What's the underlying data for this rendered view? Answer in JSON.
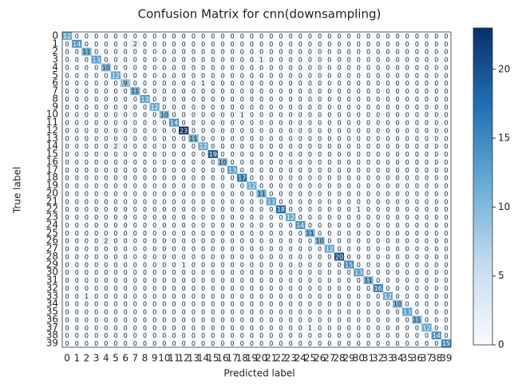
{
  "chart_data": {
    "type": "heatmap",
    "title": "Confusion Matrix for cnn(downsampling)",
    "xlabel": "Predicted label",
    "ylabel": "True label",
    "categories": [
      0,
      1,
      2,
      3,
      4,
      5,
      6,
      7,
      8,
      9,
      10,
      11,
      12,
      13,
      14,
      15,
      16,
      17,
      18,
      19,
      20,
      21,
      22,
      23,
      24,
      25,
      26,
      27,
      28,
      29,
      30,
      31,
      32,
      33,
      34,
      35,
      36,
      37,
      38,
      39
    ],
    "colormap": "Blues",
    "zlim": [
      0,
      23
    ],
    "zticks": [
      0,
      5,
      10,
      15,
      20
    ],
    "z": [
      [
        12,
        0,
        0,
        0,
        0,
        0,
        0,
        0,
        0,
        0,
        0,
        0,
        0,
        0,
        0,
        0,
        0,
        0,
        0,
        0,
        0,
        0,
        0,
        0,
        0,
        0,
        0,
        0,
        0,
        0,
        0,
        0,
        0,
        0,
        0,
        0,
        0,
        0,
        0,
        0
      ],
      [
        0,
        14,
        0,
        0,
        0,
        0,
        0,
        2,
        0,
        0,
        0,
        0,
        0,
        0,
        0,
        0,
        0,
        0,
        0,
        0,
        0,
        0,
        0,
        0,
        0,
        0,
        0,
        0,
        0,
        0,
        0,
        0,
        0,
        0,
        0,
        0,
        0,
        0,
        0,
        0
      ],
      [
        0,
        0,
        11,
        0,
        0,
        0,
        0,
        0,
        0,
        0,
        0,
        0,
        0,
        0,
        0,
        0,
        0,
        0,
        0,
        0,
        0,
        0,
        0,
        0,
        0,
        0,
        0,
        0,
        0,
        0,
        0,
        0,
        0,
        0,
        0,
        0,
        0,
        0,
        0,
        0
      ],
      [
        0,
        0,
        0,
        13,
        0,
        0,
        0,
        0,
        0,
        0,
        0,
        0,
        0,
        0,
        0,
        0,
        0,
        0,
        0,
        0,
        1,
        0,
        0,
        0,
        0,
        0,
        0,
        0,
        0,
        0,
        0,
        0,
        0,
        0,
        0,
        0,
        0,
        0,
        0,
        0
      ],
      [
        0,
        0,
        0,
        0,
        10,
        0,
        0,
        0,
        0,
        0,
        0,
        0,
        0,
        0,
        0,
        0,
        0,
        0,
        0,
        0,
        0,
        0,
        0,
        0,
        0,
        0,
        0,
        0,
        0,
        0,
        0,
        0,
        0,
        0,
        0,
        0,
        0,
        0,
        0,
        0
      ],
      [
        0,
        0,
        0,
        0,
        0,
        12,
        0,
        0,
        0,
        0,
        0,
        0,
        0,
        0,
        0,
        0,
        0,
        0,
        0,
        0,
        0,
        0,
        0,
        0,
        0,
        0,
        0,
        0,
        0,
        0,
        0,
        0,
        0,
        0,
        0,
        0,
        0,
        0,
        0,
        0
      ],
      [
        0,
        0,
        0,
        0,
        0,
        0,
        9,
        0,
        0,
        0,
        0,
        0,
        0,
        0,
        1,
        0,
        0,
        0,
        0,
        0,
        0,
        0,
        0,
        0,
        0,
        0,
        0,
        0,
        0,
        0,
        0,
        0,
        0,
        0,
        0,
        0,
        0,
        0,
        0,
        0
      ],
      [
        0,
        0,
        0,
        0,
        0,
        0,
        0,
        11,
        0,
        0,
        0,
        0,
        0,
        0,
        0,
        0,
        0,
        0,
        0,
        0,
        0,
        0,
        0,
        0,
        0,
        0,
        0,
        0,
        0,
        0,
        0,
        0,
        0,
        0,
        0,
        0,
        0,
        0,
        0,
        0
      ],
      [
        0,
        0,
        0,
        0,
        0,
        0,
        0,
        0,
        13,
        0,
        0,
        0,
        0,
        0,
        0,
        0,
        0,
        0,
        0,
        0,
        0,
        0,
        0,
        0,
        0,
        0,
        0,
        0,
        0,
        0,
        0,
        0,
        0,
        0,
        0,
        0,
        0,
        0,
        0,
        0
      ],
      [
        0,
        0,
        0,
        0,
        0,
        0,
        0,
        0,
        0,
        12,
        0,
        0,
        0,
        0,
        0,
        0,
        0,
        0,
        0,
        0,
        0,
        0,
        0,
        0,
        0,
        0,
        0,
        0,
        0,
        0,
        0,
        0,
        0,
        0,
        0,
        0,
        0,
        0,
        0,
        0
      ],
      [
        0,
        0,
        0,
        0,
        0,
        0,
        0,
        0,
        0,
        0,
        10,
        0,
        0,
        0,
        0,
        0,
        0,
        0,
        1,
        0,
        0,
        0,
        0,
        0,
        0,
        0,
        0,
        0,
        0,
        0,
        0,
        0,
        0,
        0,
        0,
        0,
        0,
        0,
        0,
        0
      ],
      [
        0,
        0,
        0,
        0,
        0,
        0,
        0,
        0,
        0,
        0,
        0,
        14,
        0,
        0,
        0,
        0,
        0,
        0,
        0,
        0,
        0,
        0,
        0,
        0,
        0,
        0,
        0,
        0,
        0,
        0,
        0,
        0,
        0,
        0,
        0,
        0,
        0,
        0,
        0,
        0
      ],
      [
        0,
        0,
        0,
        0,
        0,
        0,
        0,
        0,
        0,
        0,
        0,
        0,
        23,
        0,
        0,
        0,
        0,
        0,
        0,
        0,
        0,
        0,
        0,
        0,
        0,
        0,
        0,
        0,
        0,
        0,
        0,
        0,
        0,
        0,
        0,
        0,
        0,
        0,
        0,
        0
      ],
      [
        0,
        0,
        0,
        0,
        0,
        0,
        0,
        0,
        0,
        0,
        0,
        0,
        0,
        11,
        0,
        0,
        0,
        0,
        0,
        0,
        0,
        0,
        0,
        0,
        0,
        0,
        0,
        0,
        0,
        0,
        0,
        0,
        0,
        0,
        0,
        0,
        0,
        0,
        0,
        0
      ],
      [
        0,
        0,
        0,
        0,
        0,
        2,
        0,
        0,
        0,
        0,
        0,
        0,
        0,
        0,
        12,
        0,
        0,
        0,
        0,
        0,
        0,
        0,
        0,
        0,
        0,
        0,
        0,
        0,
        0,
        0,
        0,
        0,
        0,
        0,
        0,
        0,
        0,
        0,
        0,
        0
      ],
      [
        0,
        0,
        0,
        0,
        0,
        0,
        0,
        0,
        0,
        0,
        0,
        0,
        0,
        0,
        0,
        19,
        0,
        0,
        0,
        0,
        0,
        0,
        0,
        0,
        0,
        0,
        0,
        0,
        0,
        0,
        0,
        0,
        0,
        0,
        0,
        0,
        0,
        0,
        0,
        0
      ],
      [
        0,
        0,
        0,
        0,
        0,
        0,
        0,
        0,
        0,
        0,
        0,
        0,
        0,
        0,
        0,
        0,
        10,
        0,
        0,
        0,
        0,
        0,
        0,
        0,
        0,
        0,
        0,
        0,
        0,
        0,
        0,
        0,
        0,
        0,
        0,
        0,
        0,
        0,
        0,
        0
      ],
      [
        0,
        0,
        0,
        0,
        0,
        0,
        0,
        0,
        0,
        0,
        0,
        0,
        0,
        0,
        0,
        0,
        0,
        13,
        0,
        0,
        0,
        0,
        0,
        0,
        0,
        0,
        0,
        0,
        0,
        0,
        0,
        0,
        0,
        0,
        0,
        0,
        0,
        0,
        0,
        0
      ],
      [
        0,
        0,
        0,
        0,
        0,
        0,
        0,
        0,
        0,
        0,
        0,
        0,
        0,
        0,
        0,
        0,
        0,
        0,
        17,
        0,
        0,
        0,
        0,
        0,
        0,
        0,
        0,
        0,
        0,
        0,
        0,
        0,
        0,
        0,
        0,
        0,
        0,
        0,
        0,
        0
      ],
      [
        0,
        0,
        0,
        0,
        0,
        0,
        0,
        0,
        0,
        0,
        0,
        0,
        0,
        0,
        0,
        0,
        0,
        0,
        0,
        12,
        0,
        0,
        0,
        0,
        0,
        0,
        0,
        0,
        0,
        0,
        0,
        0,
        0,
        0,
        0,
        0,
        0,
        0,
        0,
        0
      ],
      [
        0,
        0,
        0,
        0,
        0,
        0,
        0,
        0,
        0,
        0,
        0,
        0,
        0,
        0,
        0,
        0,
        0,
        0,
        0,
        0,
        11,
        0,
        0,
        0,
        0,
        0,
        0,
        0,
        0,
        0,
        0,
        0,
        0,
        0,
        0,
        0,
        0,
        0,
        0,
        0
      ],
      [
        0,
        0,
        0,
        0,
        0,
        0,
        0,
        0,
        0,
        0,
        0,
        0,
        0,
        0,
        0,
        0,
        0,
        0,
        0,
        0,
        0,
        13,
        0,
        0,
        0,
        0,
        0,
        0,
        0,
        0,
        0,
        0,
        0,
        0,
        0,
        0,
        0,
        0,
        0,
        0
      ],
      [
        0,
        0,
        0,
        0,
        0,
        0,
        0,
        0,
        0,
        0,
        0,
        0,
        0,
        0,
        0,
        0,
        0,
        0,
        0,
        0,
        0,
        0,
        18,
        0,
        0,
        0,
        0,
        0,
        0,
        0,
        1,
        0,
        0,
        0,
        0,
        0,
        0,
        0,
        0,
        0
      ],
      [
        0,
        0,
        0,
        0,
        0,
        0,
        0,
        0,
        0,
        0,
        0,
        0,
        0,
        0,
        0,
        0,
        0,
        0,
        0,
        0,
        0,
        0,
        0,
        12,
        0,
        0,
        0,
        0,
        0,
        0,
        0,
        0,
        0,
        0,
        0,
        0,
        0,
        0,
        0,
        0
      ],
      [
        0,
        0,
        0,
        0,
        0,
        0,
        0,
        0,
        0,
        0,
        0,
        0,
        0,
        0,
        0,
        0,
        0,
        0,
        0,
        0,
        0,
        0,
        0,
        0,
        14,
        0,
        0,
        0,
        0,
        0,
        0,
        0,
        0,
        0,
        0,
        0,
        0,
        0,
        0,
        0
      ],
      [
        0,
        0,
        0,
        0,
        0,
        0,
        0,
        0,
        0,
        0,
        0,
        0,
        0,
        0,
        0,
        0,
        0,
        0,
        0,
        0,
        0,
        0,
        0,
        0,
        0,
        11,
        0,
        0,
        0,
        0,
        0,
        0,
        0,
        0,
        0,
        0,
        0,
        0,
        0,
        0
      ],
      [
        0,
        0,
        0,
        0,
        2,
        0,
        0,
        0,
        0,
        0,
        0,
        0,
        0,
        0,
        0,
        0,
        0,
        0,
        0,
        0,
        0,
        0,
        0,
        0,
        0,
        0,
        10,
        0,
        0,
        0,
        0,
        0,
        0,
        0,
        0,
        0,
        0,
        0,
        0,
        0
      ],
      [
        0,
        0,
        0,
        0,
        0,
        0,
        0,
        0,
        0,
        0,
        0,
        0,
        0,
        0,
        0,
        0,
        0,
        0,
        0,
        0,
        0,
        0,
        0,
        0,
        0,
        0,
        0,
        12,
        0,
        0,
        0,
        0,
        0,
        0,
        0,
        0,
        0,
        0,
        0,
        0
      ],
      [
        0,
        0,
        0,
        0,
        0,
        0,
        0,
        0,
        0,
        0,
        0,
        0,
        0,
        0,
        0,
        0,
        0,
        0,
        0,
        0,
        0,
        0,
        0,
        0,
        0,
        0,
        0,
        0,
        20,
        0,
        0,
        0,
        0,
        0,
        0,
        0,
        0,
        0,
        0,
        0
      ],
      [
        0,
        0,
        0,
        0,
        0,
        0,
        0,
        0,
        0,
        0,
        0,
        0,
        1,
        0,
        0,
        0,
        0,
        0,
        0,
        0,
        0,
        0,
        0,
        0,
        0,
        0,
        0,
        0,
        0,
        15,
        0,
        0,
        0,
        0,
        0,
        0,
        0,
        0,
        0,
        0
      ],
      [
        0,
        0,
        0,
        0,
        0,
        0,
        0,
        0,
        0,
        0,
        0,
        0,
        0,
        0,
        0,
        0,
        0,
        0,
        0,
        0,
        0,
        0,
        0,
        0,
        0,
        0,
        0,
        0,
        0,
        0,
        13,
        0,
        0,
        0,
        0,
        0,
        0,
        0,
        0,
        0
      ],
      [
        0,
        0,
        0,
        0,
        0,
        0,
        0,
        0,
        0,
        0,
        0,
        0,
        0,
        0,
        0,
        0,
        0,
        0,
        0,
        0,
        0,
        0,
        0,
        0,
        0,
        0,
        0,
        0,
        0,
        0,
        0,
        11,
        0,
        0,
        0,
        0,
        0,
        0,
        0,
        0
      ],
      [
        0,
        0,
        0,
        0,
        0,
        0,
        0,
        0,
        0,
        0,
        0,
        0,
        0,
        0,
        0,
        0,
        0,
        0,
        0,
        0,
        0,
        0,
        0,
        0,
        0,
        0,
        0,
        0,
        0,
        0,
        0,
        0,
        16,
        0,
        0,
        0,
        0,
        0,
        0,
        0
      ],
      [
        0,
        0,
        1,
        0,
        0,
        0,
        0,
        0,
        0,
        0,
        0,
        0,
        0,
        0,
        0,
        0,
        0,
        0,
        0,
        0,
        0,
        0,
        0,
        0,
        0,
        0,
        0,
        0,
        0,
        0,
        0,
        0,
        0,
        12,
        0,
        0,
        0,
        0,
        0,
        0
      ],
      [
        0,
        0,
        0,
        0,
        0,
        0,
        0,
        0,
        0,
        0,
        0,
        0,
        0,
        0,
        0,
        0,
        0,
        0,
        0,
        0,
        0,
        0,
        0,
        0,
        0,
        0,
        0,
        0,
        0,
        0,
        0,
        0,
        0,
        0,
        10,
        0,
        0,
        0,
        0,
        0
      ],
      [
        0,
        0,
        0,
        0,
        0,
        0,
        0,
        0,
        0,
        0,
        0,
        0,
        0,
        0,
        0,
        0,
        0,
        0,
        0,
        0,
        0,
        0,
        0,
        0,
        0,
        0,
        0,
        0,
        0,
        0,
        0,
        0,
        0,
        0,
        0,
        13,
        0,
        0,
        0,
        0
      ],
      [
        0,
        0,
        0,
        0,
        0,
        0,
        0,
        0,
        0,
        0,
        0,
        0,
        0,
        0,
        0,
        0,
        0,
        0,
        0,
        0,
        0,
        0,
        0,
        0,
        0,
        0,
        0,
        0,
        0,
        0,
        0,
        0,
        0,
        0,
        0,
        0,
        11,
        0,
        0,
        0
      ],
      [
        0,
        0,
        0,
        0,
        0,
        0,
        0,
        0,
        0,
        0,
        0,
        0,
        0,
        0,
        0,
        0,
        0,
        0,
        0,
        0,
        0,
        0,
        0,
        0,
        0,
        1,
        0,
        0,
        0,
        0,
        0,
        0,
        0,
        0,
        0,
        0,
        0,
        12,
        0,
        0
      ],
      [
        0,
        0,
        0,
        0,
        0,
        0,
        0,
        0,
        0,
        0,
        0,
        0,
        0,
        0,
        0,
        0,
        0,
        0,
        0,
        0,
        0,
        0,
        0,
        0,
        0,
        0,
        0,
        0,
        0,
        0,
        0,
        0,
        0,
        0,
        0,
        0,
        0,
        0,
        14,
        0
      ],
      [
        0,
        0,
        0,
        0,
        0,
        0,
        0,
        0,
        0,
        0,
        0,
        0,
        0,
        0,
        0,
        0,
        0,
        0,
        0,
        0,
        0,
        0,
        0,
        0,
        0,
        0,
        0,
        0,
        0,
        0,
        0,
        0,
        0,
        0,
        0,
        0,
        0,
        0,
        0,
        15
      ]
    ]
  }
}
